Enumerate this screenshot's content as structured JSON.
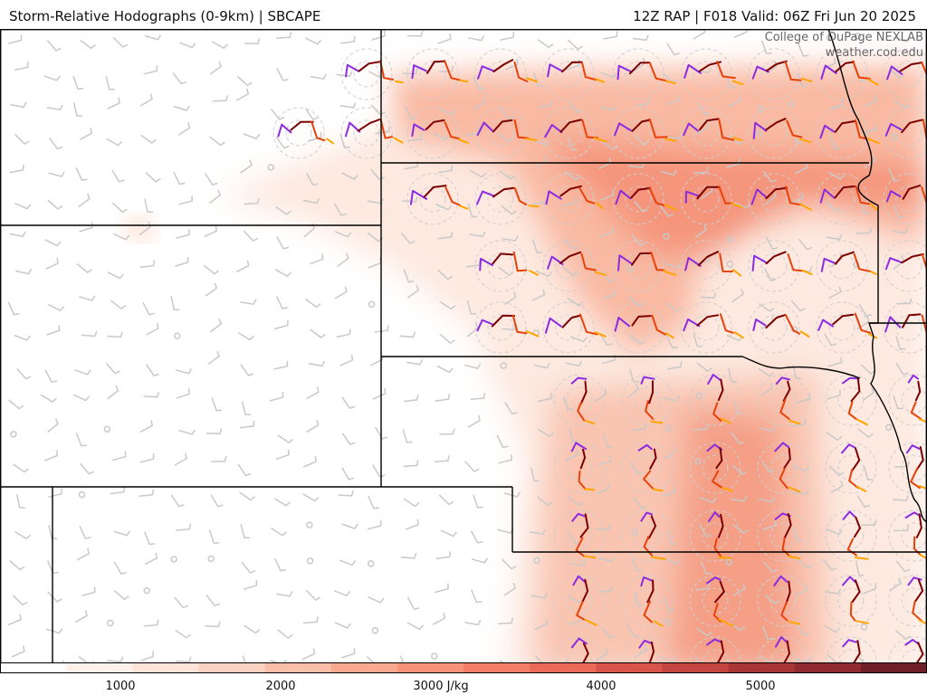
{
  "header": {
    "title_left": "Storm-Relative Hodographs (0-9km) | SBCAPE",
    "title_right": "12Z RAP | F018 Valid: 06Z Fri Jun 20 2025"
  },
  "credit": {
    "line1": "College of DuPage NEXLAB",
    "line2": "weather.cod.edu"
  },
  "colorbar": {
    "colors": [
      "#ffffff",
      "#fff1ea",
      "#fde3d8",
      "#fcd3c3",
      "#fbbfa9",
      "#f9a98f",
      "#f79378",
      "#f27e65",
      "#e86a57",
      "#d9554b",
      "#c44440",
      "#a83637",
      "#8f2a31",
      "#6e1f28"
    ],
    "labels": [
      "1000",
      "2000",
      "3000 J/kg",
      "4000",
      "5000"
    ]
  },
  "map": {
    "cape_colors": {
      "low": "#fde9e0",
      "mid": "#f8b29a",
      "high": "#f08468"
    },
    "hodograph_colors": [
      "#8a2be2",
      "#7b0000",
      "#e8410a",
      "#ffa500"
    ]
  }
}
